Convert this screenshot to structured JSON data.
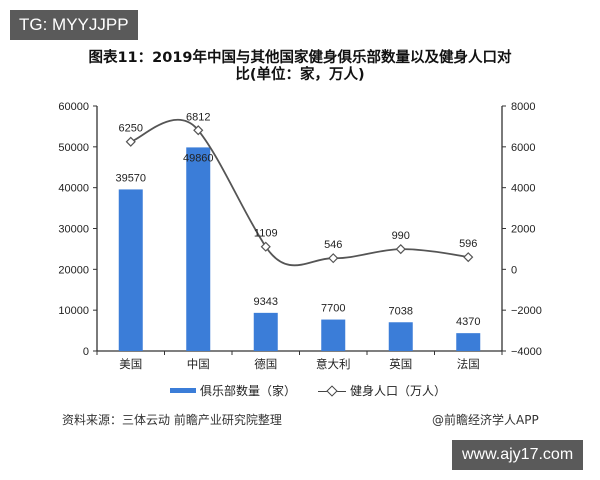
{
  "watermarks": {
    "tag": "TG: MYYJJPP",
    "site": "www.ajy17.com"
  },
  "title": {
    "line1": "图表11：2019年中国与其他国家健身俱乐部数量以及健身人口对",
    "line2": "比(单位：家，万人)"
  },
  "legend": {
    "bar_label": "俱乐部数量（家）",
    "line_label": "健身人口（万人）"
  },
  "footer": {
    "source": "资料来源：三体云动 前瞻产业研究院整理",
    "credit": "@前瞻经济学人APP"
  },
  "colors": {
    "bar": "#3b7dd8",
    "line": "#555555",
    "axis": "#333333"
  },
  "chart_data": {
    "type": "bar+line",
    "title": "图表11：2019年中国与其他国家健身俱乐部数量以及健身人口对比(单位：家，万人)",
    "categories": [
      "美国",
      "中国",
      "德国",
      "意大利",
      "英国",
      "法国"
    ],
    "series": [
      {
        "name": "俱乐部数量（家）",
        "type": "bar",
        "axis": "left",
        "values": [
          39570,
          49860,
          9343,
          7700,
          7038,
          4370
        ]
      },
      {
        "name": "健身人口（万人）",
        "type": "line",
        "axis": "right",
        "smooth": true,
        "marker": "diamond",
        "values": [
          6250,
          6812,
          1109,
          546,
          990,
          596
        ]
      }
    ],
    "left_axis": {
      "range": [
        0,
        60000
      ],
      "ticks": [
        "0",
        "10000",
        "20000",
        "30000",
        "40000",
        "50000",
        "60000"
      ]
    },
    "right_axis": {
      "range": [
        -4000,
        8000
      ],
      "ticks": [
        "-4000",
        "-2000",
        "0",
        "2000",
        "4000",
        "6000",
        "8000"
      ]
    },
    "grid": false,
    "legend_position": "bottom",
    "source": "资料来源：三体云动 前瞻产业研究院整理"
  }
}
